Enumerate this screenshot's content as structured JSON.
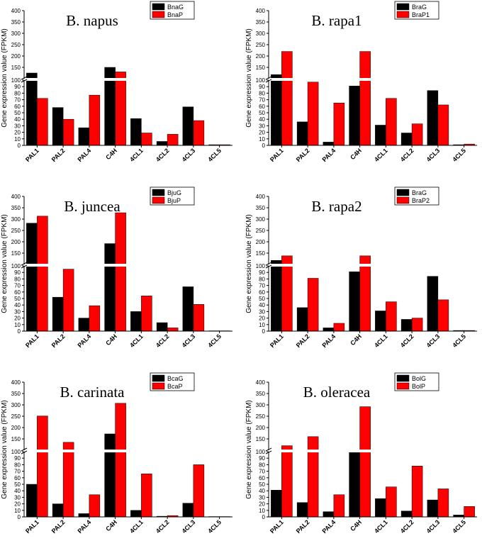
{
  "colors": {
    "series_g": "#000000",
    "series_p": "#ff0000",
    "axis": "#000000",
    "break": "#ffffff"
  },
  "chart_data": [
    {
      "type": "bar",
      "title": "B.  napus",
      "ylabel": "Gene expression value (FPKM)",
      "categories": [
        "PAL1",
        "PAL2",
        "PAL4",
        "C4H",
        "4CL1",
        "4CL2",
        "4CL3",
        "4CL5"
      ],
      "series": [
        {
          "name": "BnaG",
          "values": [
            125,
            58,
            27,
            150,
            41,
            6,
            59,
            1
          ]
        },
        {
          "name": "BnaP",
          "values": [
            72,
            40,
            77,
            130,
            19,
            17,
            38,
            1
          ]
        }
      ],
      "y_lower_range": [
        0,
        100
      ],
      "y_lower_ticks": [
        "0",
        "10",
        "20",
        "30",
        "40",
        "50",
        "60",
        "70",
        "80",
        "90",
        "100"
      ],
      "y_upper_range": [
        100,
        400
      ],
      "y_upper_ticks": [
        "100",
        "150",
        "200",
        "250",
        "300",
        "350",
        "400"
      ],
      "axis_break": true
    },
    {
      "type": "bar",
      "title": "B. rapa1",
      "ylabel": "Gene expression value (FPKM)",
      "categories": [
        "PAL1",
        "PAL2",
        "PAL4",
        "C4H",
        "4CL1",
        "4CL2",
        "4CL3",
        "4CL5"
      ],
      "series": [
        {
          "name": "BraG",
          "values": [
            118,
            36,
            5,
            91,
            31,
            19,
            84,
            1
          ]
        },
        {
          "name": "BraP1",
          "values": [
            220,
            97,
            65,
            220,
            72,
            33,
            62,
            2
          ]
        }
      ],
      "y_lower_range": [
        0,
        100
      ],
      "y_lower_ticks": [
        "0",
        "10",
        "20",
        "30",
        "40",
        "50",
        "60",
        "70",
        "80",
        "90",
        "100"
      ],
      "y_upper_range": [
        100,
        400
      ],
      "y_upper_ticks": [
        "100",
        "150",
        "200",
        "250",
        "300",
        "350",
        "400"
      ],
      "axis_break": true
    },
    {
      "type": "bar",
      "title": "B. juncea",
      "ylabel": "Gene expression value (FPKM)",
      "categories": [
        "PAL1",
        "PAL2",
        "PAL4",
        "C4H",
        "4CL1",
        "4CL2",
        "4CL3",
        "4CL5"
      ],
      "series": [
        {
          "name": "BjuG",
          "values": [
            282,
            52,
            20,
            192,
            30,
            13,
            68,
            0.5
          ]
        },
        {
          "name": "BjuP",
          "values": [
            313,
            95,
            39,
            328,
            54,
            5,
            41,
            0.5
          ]
        }
      ],
      "y_lower_range": [
        0,
        100
      ],
      "y_lower_ticks": [
        "0",
        "10",
        "20",
        "30",
        "40",
        "50",
        "60",
        "70",
        "80",
        "90",
        "100"
      ],
      "y_upper_range": [
        100,
        400
      ],
      "y_upper_ticks": [
        "100",
        "150",
        "200",
        "250",
        "300",
        "350",
        "400"
      ],
      "axis_break": true
    },
    {
      "type": "bar",
      "title": "B. rapa2",
      "ylabel": "Gene expression value (FPKM)",
      "categories": [
        "PAL1",
        "PAL2",
        "PAL4",
        "C4H",
        "4CL1",
        "4CL2",
        "4CL3",
        "4CL5"
      ],
      "series": [
        {
          "name": "BraG",
          "values": [
            118,
            36,
            5,
            91,
            31,
            18,
            84,
            1
          ]
        },
        {
          "name": "BraP2",
          "values": [
            138,
            81,
            12,
            138,
            45,
            20,
            48,
            1
          ]
        }
      ],
      "y_lower_range": [
        0,
        100
      ],
      "y_lower_ticks": [
        "0",
        "10",
        "20",
        "30",
        "40",
        "50",
        "60",
        "70",
        "80",
        "90",
        "100"
      ],
      "y_upper_range": [
        100,
        400
      ],
      "y_upper_ticks": [
        "100",
        "150",
        "200",
        "250",
        "300",
        "350",
        "400"
      ],
      "axis_break": true
    },
    {
      "type": "bar",
      "title": "B. carinata",
      "ylabel": "Gene expression value (FPKM)",
      "categories": [
        "PAL1",
        "PAL2",
        "PAL4",
        "C4H",
        "4CL1",
        "4CL2",
        "4CL3",
        "4CL5"
      ],
      "series": [
        {
          "name": "BcaG",
          "values": [
            50,
            20,
            5,
            172,
            10,
            1,
            21,
            0.5
          ]
        },
        {
          "name": "BcaP",
          "values": [
            251,
            135,
            34,
            307,
            66,
            2,
            80,
            0.5
          ]
        }
      ],
      "y_lower_range": [
        0,
        100
      ],
      "y_lower_ticks": [
        "0",
        "10",
        "20",
        "30",
        "40",
        "50",
        "60",
        "70",
        "80",
        "90",
        "100"
      ],
      "y_upper_range": [
        100,
        400
      ],
      "y_upper_ticks": [
        "100",
        "150",
        "200",
        "250",
        "300",
        "350",
        "400"
      ],
      "axis_break": true
    },
    {
      "type": "bar",
      "title": "B. oleracea",
      "ylabel": "Gene expression value (FPKM)",
      "categories": [
        "PAL1",
        "PAL2",
        "PAL4",
        "C4H",
        "4CL1",
        "4CL2",
        "4CL3",
        "4CL5"
      ],
      "series": [
        {
          "name": "BolG",
          "values": [
            41,
            22,
            8,
            100,
            28,
            9,
            26,
            3
          ]
        },
        {
          "name": "BolP",
          "values": [
            120,
            160,
            34,
            292,
            46,
            78,
            43,
            16
          ]
        }
      ],
      "y_lower_range": [
        0,
        100
      ],
      "y_lower_ticks": [
        "0",
        "10",
        "20",
        "30",
        "40",
        "50",
        "60",
        "70",
        "80",
        "90",
        "100"
      ],
      "y_upper_range": [
        100,
        400
      ],
      "y_upper_ticks": [
        "100",
        "150",
        "200",
        "250",
        "300",
        "350",
        "400"
      ],
      "axis_break": true
    }
  ]
}
